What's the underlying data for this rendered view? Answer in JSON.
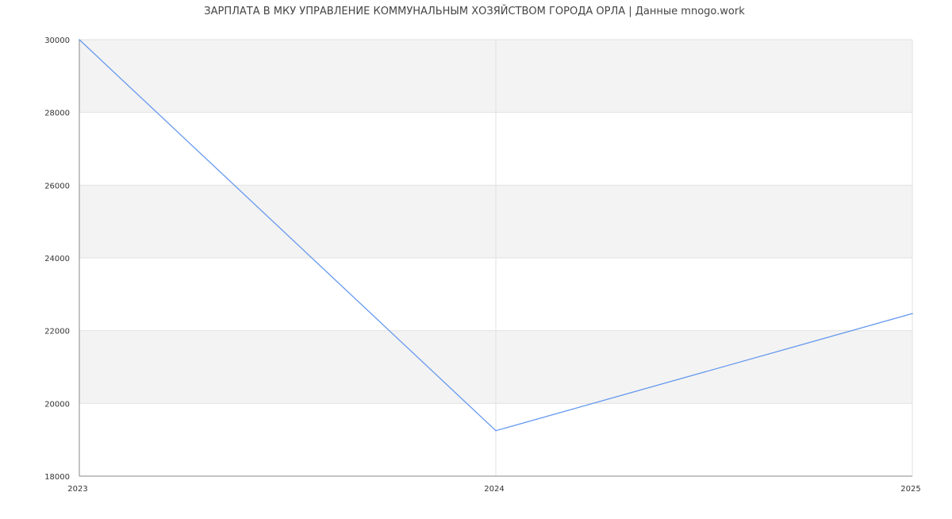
{
  "chart_data": {
    "type": "line",
    "title": "ЗАРПЛАТА В МКУ УПРАВЛЕНИЕ КОММУНАЛЬНЫМ ХОЗЯЙСТВОМ ГОРОДА ОРЛА | Данные mnogo.work",
    "xlabel": "",
    "ylabel": "",
    "x": [
      "2023",
      "2024",
      "2025"
    ],
    "series": [
      {
        "values": [
          30000,
          19250,
          22470
        ],
        "color": "#6699ee"
      }
    ],
    "ylim": [
      18000,
      30000
    ],
    "yticks": [
      "18000",
      "20000",
      "22000",
      "24000",
      "26000",
      "28000",
      "30000"
    ],
    "grid": true,
    "band_color": "#f3f3f3",
    "legend": "none"
  }
}
